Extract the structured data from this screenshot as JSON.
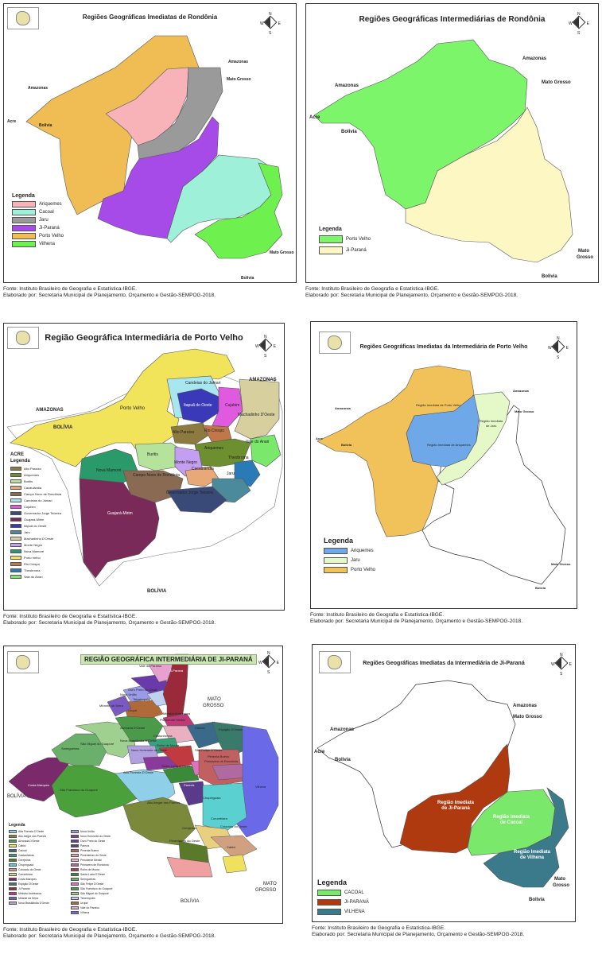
{
  "caption": {
    "source": "Fonte: Instituto Brasileiro de Geografia e Estatística-IBGE.",
    "author": "Elaborado por: Secretaria Municipal de Planejamento, Orçamento e Gestão-SEMPOG-2018."
  },
  "compass": {
    "n": "N",
    "s": "S",
    "e": "E",
    "w": "W"
  },
  "map1": {
    "title": "Regiões Geográficas Imediatas de Rondônia",
    "labels": {
      "amazonas_top": "Amazonas",
      "amazonas_left": "Amazonas",
      "mato_grosso_top": "Mato Grosso",
      "mato_grosso_bottom": "Mato Grosso",
      "acre": "Acre",
      "bolivia_left": "Bolivia",
      "bolivia_bottom": "Bolivia"
    },
    "legend_title": "Legenda",
    "legend": [
      {
        "label": "Ariquemes",
        "color": "#f7b3b8"
      },
      {
        "label": "Cacoal",
        "color": "#9ff0d8"
      },
      {
        "label": "Jaru",
        "color": "#9a9a9a"
      },
      {
        "label": "Ji-Paraná",
        "color": "#a64ae8"
      },
      {
        "label": "Porto Velho",
        "color": "#f0bd55"
      },
      {
        "label": "Vilhena",
        "color": "#6ef04e"
      }
    ]
  },
  "map2": {
    "title": "Regiões Geográficas Intermediárias de Rondônia",
    "labels": {
      "amazonas_top": "Amazonas",
      "amazonas_left": "Amazonas",
      "mato_grosso_top": "Mato Grosso",
      "mato": "Mato",
      "grosso": "Grosso",
      "acre": "Acre",
      "bolivia_left": "Bolivia",
      "bolivia_bottom": "Bolivia"
    },
    "legend_title": "Legenda",
    "legend": [
      {
        "label": "Porto Velho",
        "color": "#7cf56a"
      },
      {
        "label": "Ji-Paraná",
        "color": "#fdf7c3"
      }
    ]
  },
  "map3": {
    "title": "Região Geográfica Intermediária de Porto Velho",
    "labels": {
      "amazonas_left": "AMAZONAS",
      "amazonas_right": "AMAZONAS",
      "acre": "ACRE",
      "bolivia_left": "BOLÍVIA",
      "bolivia_bottom": "BOLÍVIA",
      "porto_velho": "Porto Velho",
      "candeias": "Candeias do Jamari",
      "itapua": "Itapuã do Oeste",
      "cujubim": "Cujubim",
      "machadinho": "Machadinho D'Oeste",
      "alto_paraiso": "Alto Paraíso",
      "rio_crespo": "Rio Crespo",
      "vale_anari": "Vale do Anari",
      "ariquemes": "Ariquemes",
      "buritis": "Buritis",
      "monte_negro": "Monte Negro",
      "theobroma": "Theobroma",
      "nova_mamore": "Nova Mamoré",
      "campo_novo": "Campo Novo de Rondônia",
      "cacaulandia": "Cacaulândia",
      "jaru": "Jaru",
      "governador": "Governador Jorge Teixeira",
      "guajara": "Guajará-Mirim"
    },
    "legend_title": "Legenda",
    "legend": [
      {
        "label": "Alto Paraíso",
        "color": "#8c7a3e"
      },
      {
        "label": "Ariquemes",
        "color": "#6d8f2f"
      },
      {
        "label": "Buritis",
        "color": "#b6e39b"
      },
      {
        "label": "Cacaulândia",
        "color": "#e8a878"
      },
      {
        "label": "Campo Novo de Rondônia",
        "color": "#8a6a52"
      },
      {
        "label": "Candeias do Jamari",
        "color": "#a8e6f0"
      },
      {
        "label": "Cujubim",
        "color": "#e05ae0"
      },
      {
        "label": "Governador Jorge Teixeira",
        "color": "#3a4a78"
      },
      {
        "label": "Guajará-Mirim",
        "color": "#7a2a58"
      },
      {
        "label": "Itapuã do Oeste",
        "color": "#3a3ab8"
      },
      {
        "label": "Jaru",
        "color": "#4a8a9a"
      },
      {
        "label": "Machadinho D'Oeste",
        "color": "#d8cf9e"
      },
      {
        "label": "Monte Negro",
        "color": "#c49ef0"
      },
      {
        "label": "Nova Mamoré",
        "color": "#2a9a6a"
      },
      {
        "label": "Porto Velho",
        "color": "#f2e45a"
      },
      {
        "label": "Rio Crespo",
        "color": "#c0784a"
      },
      {
        "label": "Theobroma",
        "color": "#2a7ab8"
      },
      {
        "label": "Vale do Anari",
        "color": "#7ae86a"
      }
    ]
  },
  "map4": {
    "title": "Regiões Geográficas Imediatas da Intermediária de Porto Velho",
    "labels": {
      "amazonas_left": "Amazonas",
      "amazonas_top": "Amazonas",
      "mato_grosso_top": "Mato Grosso",
      "mato_grosso_bottom": "Mato Grosso",
      "acre": "Acre",
      "bolivia_left": "Bolivia",
      "bolivia_bottom": "Bolivia",
      "regiao_pv": "Região Imediata de Porto Velho",
      "regiao_jaru_1": "Região Imediata",
      "regiao_jaru_2": "de Jaru",
      "regiao_ariq": "Região Imediata de Ariquemes"
    },
    "legend_title": "Legenda",
    "legend": [
      {
        "label": "Ariquemes",
        "color": "#6fa8e8"
      },
      {
        "label": "Jaru",
        "color": "#e4f8c8"
      },
      {
        "label": "Porto Velho",
        "color": "#f2c25a"
      }
    ]
  },
  "map5": {
    "title": "REGIÃO GEOGRÁFICA INTERMEDIÁRIA DE JI-PARANÁ",
    "labels": {
      "mato_grosso_1": "MATO",
      "mato_grosso_2": "GROSSO",
      "mato_grosso_3": "MATO",
      "mato_grosso_4": "GROSSO",
      "bolivia_left": "BOLÍVIA",
      "bolivia_bottom": "BOLÍVIA",
      "vale_paraiso": "Vale do Paraíso",
      "ji_parana": "Ji-Paraná",
      "ouro_preto": "Ouro Preto do Oeste",
      "nova_uniao": "Nova União",
      "teixeiropolis": "Teixeirópolis",
      "mirante": "Mirante da Serra",
      "urupa": "Urupá",
      "ministro": "Ministro Andreazza",
      "presidente_medici": "Presidente Médici",
      "alvorada": "Alvorada D'Oeste",
      "cacoal": "Cacoal",
      "espigao": "Espigão D'Oeste",
      "castanheiras": "Castanheiras",
      "seringueiras": "Seringueiras",
      "sao_miguel": "São Miguel do Guaporé",
      "nova_brasilandia": "Nova Brasilândia D'Oeste",
      "novo_horizonte": "Novo Horizonte do Oeste",
      "rolim": "Rolim de Moura",
      "sao_felipe": "São Felipe D'Oeste",
      "pimenta": "Pimenta Bueno",
      "primavera": "Primavera de Rondônia",
      "santa_luzia": "Santa Luzia D'Oeste",
      "alta_floresta": "Alta Floresta D'Oeste",
      "costa_marques": "Costa Marques",
      "sao_francisco": "São Francisco do Guaporé",
      "parecis": "Parecis",
      "vilhena": "Vilhena",
      "chupinguaia": "Chupinguaia",
      "alto_alegre": "Alto Alegre dos Parecis",
      "corumbiara": "Corumbiara",
      "cerejeiras": "Cerejeiras",
      "colorado": "Colorado do Oeste",
      "pimenteiras": "Pimenteiras do Oeste",
      "cabixi": "Cabixi"
    },
    "legend_title": "Legenda",
    "legend": [
      {
        "label": "Alta Floresta D'Oeste",
        "color": "#8fd0e8"
      },
      {
        "label": "Alto Alegre dos Parecis",
        "color": "#7a8a3a"
      },
      {
        "label": "Alvorada D'Oeste",
        "color": "#4a9a4a"
      },
      {
        "label": "Cabixi",
        "color": "#f0e060"
      },
      {
        "label": "Cacoal",
        "color": "#3a6a8a"
      },
      {
        "label": "Castanheiras",
        "color": "#3aa07a"
      },
      {
        "label": "Cerejeiras",
        "color": "#5a7a2a"
      },
      {
        "label": "Chupinguaia",
        "color": "#5ad0d0"
      },
      {
        "label": "Colorado do Oeste",
        "color": "#d0a080"
      },
      {
        "label": "Corumbiara",
        "color": "#e8d080"
      },
      {
        "label": "Costa Marques",
        "color": "#7a2a6a"
      },
      {
        "label": "Espigão D'Oeste",
        "color": "#3a7a6a"
      },
      {
        "label": "Ji-Paraná",
        "color": "#9a2a3a"
      },
      {
        "label": "Ministro Andreazza",
        "color": "#c03a7a"
      },
      {
        "label": "Mirante da Serra",
        "color": "#7a5ac0"
      },
      {
        "label": "Nova Brasilândia D'Oeste",
        "color": "#b0a0e0"
      },
      {
        "label": "Nova União",
        "color": "#9a9ae8"
      },
      {
        "label": "Novo Horizonte do Oeste",
        "color": "#8a3a9a"
      },
      {
        "label": "Ouro Preto do Oeste",
        "color": "#6a3aaa"
      },
      {
        "label": "Parecis",
        "color": "#5a3a8a"
      },
      {
        "label": "Pimenta Bueno",
        "color": "#c06060"
      },
      {
        "label": "Pimenteiras do Oeste",
        "color": "#f0a0a0"
      },
      {
        "label": "Presidente Médici",
        "color": "#e8b0c0"
      },
      {
        "label": "Primavera de Rondônia",
        "color": "#b06aa0"
      },
      {
        "label": "Rolim de Moura",
        "color": "#c03a40"
      },
      {
        "label": "Santa Luzia D'Oeste",
        "color": "#3a8a3a"
      },
      {
        "label": "Seringueiras",
        "color": "#6ab06a"
      },
      {
        "label": "São Felipe D'Oeste",
        "color": "#e070c0"
      },
      {
        "label": "São Francisco do Guaporé",
        "color": "#4aa03a"
      },
      {
        "label": "São Miguel do Guaporé",
        "color": "#a0d090"
      },
      {
        "label": "Teixeirópolis",
        "color": "#c0d0f0"
      },
      {
        "label": "Urupá",
        "color": "#b06a3a"
      },
      {
        "label": "Vale do Paraíso",
        "color": "#e8a0d0"
      },
      {
        "label": "Vilhena",
        "color": "#6a6ae8"
      }
    ]
  },
  "map6": {
    "title": "Regiões Geográficas Imediatas da Intermediária de Ji-Paraná",
    "labels": {
      "amazonas_left": "Amazonas",
      "amazonas_top": "Amazonas",
      "mato_grosso_top": "Mato Grosso",
      "mato": "Mato",
      "grosso": "Grosso",
      "acre": "Acre",
      "bolivia_left": "Bolivia",
      "bolivia_bottom": "Bolivia",
      "regiao_jp_1": "Região Imediata",
      "regiao_jp_2": "de Ji-Paraná",
      "regiao_cacoal_1": "Região Imediata",
      "regiao_cacoal_2": "de Cacoal",
      "regiao_vilhena_1": "Região Imediata",
      "regiao_vilhena_2": "de Vilhena"
    },
    "legend_title": "Legenda",
    "legend": [
      {
        "label": "CACOAL",
        "color": "#7ae86a"
      },
      {
        "label": "JI-PARANÁ",
        "color": "#b03a10"
      },
      {
        "label": "VILHENA",
        "color": "#3a7a8a"
      }
    ]
  }
}
